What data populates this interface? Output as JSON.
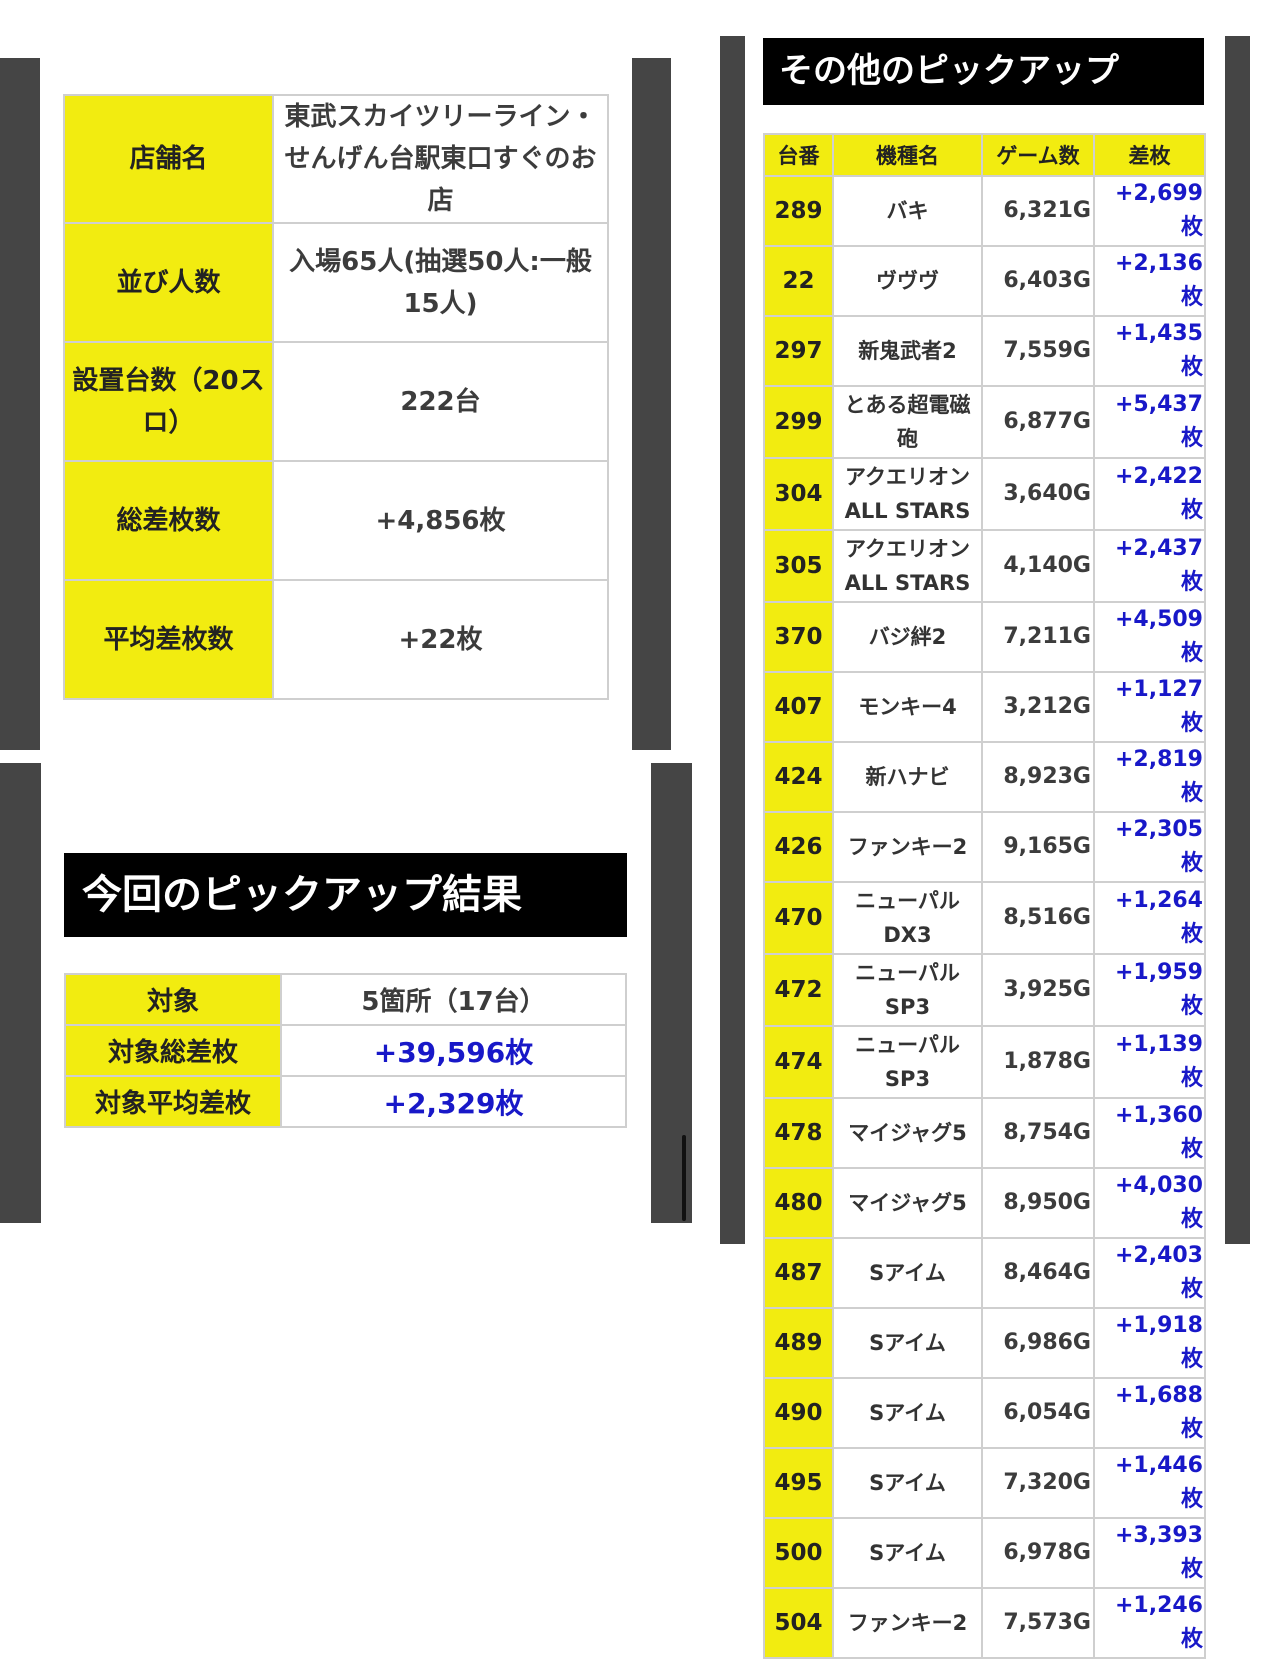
{
  "store_info": {
    "rows": [
      {
        "label": "店舗名",
        "lines": [
          "東武スカイツリーライン・",
          "せんげん台駅東口すぐのお",
          "店"
        ]
      },
      {
        "label": "並び人数",
        "lines": [
          "入場65人(抽選50人:一般",
          "15人)"
        ]
      },
      {
        "label_lines": [
          "設置台数（20ス",
          "ロ）"
        ],
        "lines": [
          "222台"
        ]
      },
      {
        "label": "総差枚数",
        "lines": [
          "+4,856枚"
        ]
      },
      {
        "label": "平均差枚数",
        "lines": [
          "+22枚"
        ]
      }
    ]
  },
  "result": {
    "heading": "今回のピックアップ結果",
    "rows": [
      {
        "label": "対象",
        "value": "5箇所（17台）"
      },
      {
        "label": "対象総差枚",
        "value": "+39,596枚"
      },
      {
        "label": "対象平均差枚",
        "value": "+2,329枚"
      }
    ]
  },
  "other": {
    "heading": "その他のピックアップ",
    "headers": [
      "台番",
      "機種名",
      "ゲーム数",
      "差枚"
    ],
    "rows": [
      {
        "no": "289",
        "name": [
          "バキ"
        ],
        "games": "6,321G",
        "diff": "+2,699枚"
      },
      {
        "no": "22",
        "name": [
          "ヴヴヴ"
        ],
        "games": "6,403G",
        "diff": "+2,136枚"
      },
      {
        "no": "297",
        "name": [
          "新鬼武者2"
        ],
        "games": "7,559G",
        "diff": "+1,435枚"
      },
      {
        "no": "299",
        "name": [
          "とある超電磁",
          "砲"
        ],
        "games": "6,877G",
        "diff": "+5,437枚"
      },
      {
        "no": "304",
        "name": [
          "アクエリオン",
          "ALL STARS"
        ],
        "games": "3,640G",
        "diff": "+2,422枚"
      },
      {
        "no": "305",
        "name": [
          "アクエリオン",
          "ALL STARS"
        ],
        "games": "4,140G",
        "diff": "+2,437枚"
      },
      {
        "no": "370",
        "name": [
          "バジ絆2"
        ],
        "games": "7,211G",
        "diff": "+4,509枚"
      },
      {
        "no": "407",
        "name": [
          "モンキー4"
        ],
        "games": "3,212G",
        "diff": "+1,127枚"
      },
      {
        "no": "424",
        "name": [
          "新ハナビ"
        ],
        "games": "8,923G",
        "diff": "+2,819枚"
      },
      {
        "no": "426",
        "name": [
          "ファンキー2"
        ],
        "games": "9,165G",
        "diff": "+2,305枚"
      },
      {
        "no": "470",
        "name": [
          "ニューパル",
          "DX3"
        ],
        "games": "8,516G",
        "diff": "+1,264枚"
      },
      {
        "no": "472",
        "name": [
          "ニューパル",
          "SP3"
        ],
        "games": "3,925G",
        "diff": "+1,959枚"
      },
      {
        "no": "474",
        "name": [
          "ニューパル",
          "SP3"
        ],
        "games": "1,878G",
        "diff": "+1,139枚"
      },
      {
        "no": "478",
        "name": [
          "マイジャグ5"
        ],
        "games": "8,754G",
        "diff": "+1,360枚"
      },
      {
        "no": "480",
        "name": [
          "マイジャグ5"
        ],
        "games": "8,950G",
        "diff": "+4,030枚"
      },
      {
        "no": "487",
        "name": [
          "Sアイム"
        ],
        "games": "8,464G",
        "diff": "+2,403枚"
      },
      {
        "no": "489",
        "name": [
          "Sアイム"
        ],
        "games": "6,986G",
        "diff": "+1,918枚"
      },
      {
        "no": "490",
        "name": [
          "Sアイム"
        ],
        "games": "6,054G",
        "diff": "+1,688枚"
      },
      {
        "no": "495",
        "name": [
          "Sアイム"
        ],
        "games": "7,320G",
        "diff": "+1,446枚"
      },
      {
        "no": "500",
        "name": [
          "Sアイム"
        ],
        "games": "6,978G",
        "diff": "+3,393枚"
      },
      {
        "no": "504",
        "name": [
          "ファンキー2"
        ],
        "games": "7,573G",
        "diff": "+1,246枚"
      }
    ]
  },
  "colors": {
    "accent_yellow": "#f2ec10",
    "value_blue": "#1818c8",
    "heading_bg": "#000000",
    "border_gray": "#454545"
  }
}
